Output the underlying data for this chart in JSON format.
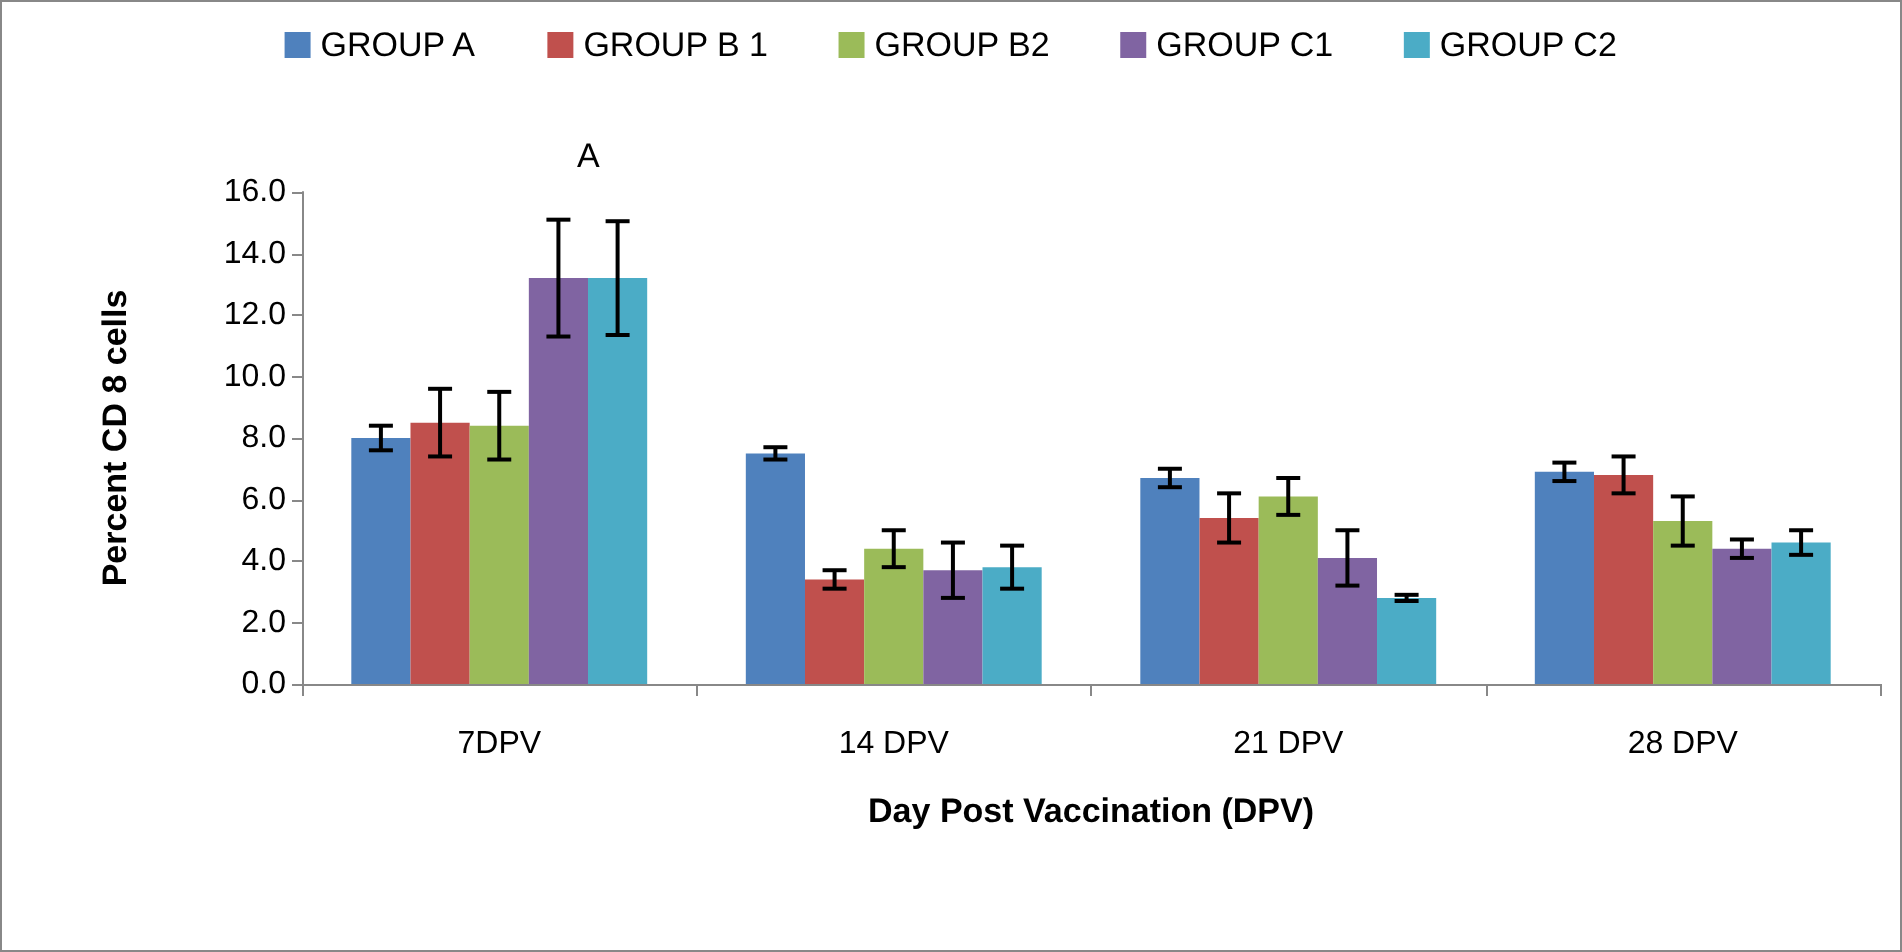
{
  "chart_data": {
    "type": "bar",
    "xlabel": "Day Post Vaccination (DPV)",
    "ylabel": "Percent CD 8 cells",
    "categories": [
      "7DPV",
      "14 DPV",
      "21 DPV",
      "28 DPV"
    ],
    "series": [
      {
        "name": "GROUP A",
        "color": "#4f81bd",
        "values": [
          8.0,
          7.5,
          6.7,
          6.9
        ],
        "errors": [
          0.4,
          0.2,
          0.3,
          0.3
        ]
      },
      {
        "name": "GROUP B 1",
        "color": "#c0504d",
        "values": [
          8.5,
          3.4,
          5.4,
          6.8
        ],
        "errors": [
          1.1,
          0.3,
          0.8,
          0.6
        ]
      },
      {
        "name": "GROUP B2",
        "color": "#9bbb59",
        "values": [
          8.4,
          4.4,
          6.1,
          5.3
        ],
        "errors": [
          1.1,
          0.6,
          0.6,
          0.8
        ]
      },
      {
        "name": "GROUP C1",
        "color": "#8064a2",
        "values": [
          13.2,
          3.7,
          4.1,
          4.4
        ],
        "errors": [
          1.9,
          0.9,
          0.9,
          0.3
        ]
      },
      {
        "name": "GROUP C2",
        "color": "#4bacc6",
        "values": [
          13.2,
          3.8,
          2.8,
          4.6
        ],
        "errors": [
          1.85,
          0.7,
          0.1,
          0.4
        ]
      }
    ],
    "ylim": [
      0,
      16
    ],
    "yticks": [
      {
        "value": 0,
        "label": "0.0"
      },
      {
        "value": 2,
        "label": "2.0"
      },
      {
        "value": 4,
        "label": "4.0"
      },
      {
        "value": 6,
        "label": "6.0"
      },
      {
        "value": 8,
        "label": "8.0"
      },
      {
        "value": 10,
        "label": "10.0"
      },
      {
        "value": 12,
        "label": "12.0"
      },
      {
        "value": 14,
        "label": "14.0"
      },
      {
        "value": 16,
        "label": "16.0"
      }
    ],
    "annotations": [
      "A"
    ],
    "grid": false,
    "legend": "top"
  }
}
